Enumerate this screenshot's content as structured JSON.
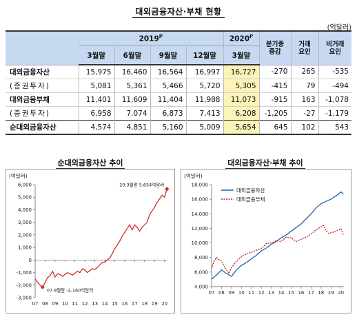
{
  "title": "대외금융자산·부채 현황",
  "unit": "(억달러)",
  "table": {
    "year_2019": "2019",
    "year_2020": "2020",
    "prelim_mark": "P",
    "col_headers": [
      "3월말",
      "6월말",
      "9월말",
      "12월말",
      "3월말"
    ],
    "change_header": [
      "분기중",
      "증감"
    ],
    "trade_header": [
      "거래",
      "요인"
    ],
    "nontrade_header": [
      "비거래",
      "요인"
    ],
    "rows": [
      {
        "label": "대외금융자산",
        "values": [
          "15,975",
          "16,460",
          "16,564",
          "16,997",
          "16,727",
          "-270",
          "265",
          "-535"
        ]
      },
      {
        "label": "(증권투자)",
        "values": [
          "5,081",
          "5,361",
          "5,466",
          "5,720",
          "5,305",
          "-415",
          "79",
          "-494"
        ]
      },
      {
        "label": "대외금융부채",
        "values": [
          "11,401",
          "11,609",
          "11,404",
          "11,988",
          "11,073",
          "-915",
          "163",
          "-1,078"
        ]
      },
      {
        "label": "(증권투자)",
        "values": [
          "6,958",
          "7,074",
          "6,873",
          "7,413",
          "6,208",
          "-1,205",
          "-27",
          "-1,179"
        ]
      },
      {
        "label": "순대외금융자산",
        "values": [
          "4,574",
          "4,851",
          "5,160",
          "5,009",
          "5,654",
          "645",
          "102",
          "543"
        ]
      }
    ]
  },
  "left_chart": {
    "title": "순대외금융자산 추이",
    "unit": "(억달러)",
    "annotation_max": "20.3월말 5,654억달러",
    "annotation_min": "07.9월말 -2,160억달러",
    "chart_data": {
      "type": "line",
      "ylim": [
        -3000,
        6000
      ],
      "yticks": [
        "6,000",
        "5,000",
        "4,000",
        "3,000",
        "2,000",
        "1,000",
        "0",
        "-1,000",
        "-2,000",
        "-3,000"
      ],
      "xticks": [
        "07",
        "08",
        "09",
        "10",
        "11",
        "12",
        "13",
        "14",
        "15",
        "16",
        "17",
        "18",
        "19",
        "20"
      ],
      "series": [
        {
          "color": "#d42a2a",
          "x": [
            2007.0,
            2007.25,
            2007.5,
            2007.75,
            2008.0,
            2008.25,
            2008.5,
            2008.75,
            2009.0,
            2009.25,
            2009.5,
            2009.75,
            2010.0,
            2010.25,
            2010.5,
            2010.75,
            2011.0,
            2011.25,
            2011.5,
            2011.75,
            2012.0,
            2012.25,
            2012.5,
            2012.75,
            2013.0,
            2013.25,
            2013.5,
            2013.75,
            2014.0,
            2014.25,
            2014.5,
            2014.75,
            2015.0,
            2015.25,
            2015.5,
            2015.75,
            2016.0,
            2016.25,
            2016.5,
            2016.75,
            2017.0,
            2017.25,
            2017.5,
            2017.75,
            2018.0,
            2018.25,
            2018.5,
            2018.75,
            2019.0,
            2019.25,
            2019.5,
            2019.75,
            2020.0,
            2020.25
          ],
          "values": [
            -1500,
            -1800,
            -2000,
            -2160,
            -1800,
            -1400,
            -1250,
            -900,
            -1350,
            -1100,
            -1150,
            -1300,
            -1150,
            -1000,
            -1100,
            -1200,
            -1050,
            -900,
            -1000,
            -700,
            -800,
            -1000,
            -850,
            -700,
            -750,
            -600,
            -400,
            -200,
            -150,
            0,
            150,
            500,
            900,
            1200,
            1500,
            1900,
            2200,
            2500,
            2800,
            2400,
            2800,
            2600,
            2300,
            2600,
            2800,
            3000,
            3600,
            3900,
            4200,
            4574,
            4851,
            5160,
            5009,
            5654
          ]
        }
      ]
    }
  },
  "right_chart": {
    "title": "대외금융자산·부채 추이",
    "unit": "(억달러)",
    "chart_data": {
      "type": "line",
      "ylim": [
        4000,
        18000
      ],
      "yticks": [
        "18,000",
        "16,000",
        "14,000",
        "12,000",
        "10,000",
        "8,000",
        "6,000",
        "4,000"
      ],
      "xticks": [
        "07",
        "08",
        "09",
        "10",
        "11",
        "12",
        "13",
        "14",
        "15",
        "16",
        "17",
        "18",
        "19",
        "20"
      ],
      "series": [
        {
          "name": "대외금융자산",
          "color": "#1f5fa8",
          "x": [
            2007.0,
            2007.5,
            2008.0,
            2008.5,
            2009.0,
            2009.5,
            2010.0,
            2010.5,
            2011.0,
            2011.5,
            2012.0,
            2012.5,
            2013.0,
            2013.5,
            2014.0,
            2014.5,
            2015.0,
            2015.5,
            2016.0,
            2016.5,
            2017.0,
            2017.5,
            2018.0,
            2018.5,
            2019.0,
            2019.5,
            2020.0,
            2020.25
          ],
          "values": [
            5000,
            5600,
            6300,
            5800,
            5400,
            6300,
            6900,
            7300,
            7800,
            8300,
            8900,
            9300,
            9800,
            10200,
            10700,
            11100,
            11600,
            12100,
            12600,
            13300,
            14000,
            14800,
            15400,
            15700,
            16000,
            16460,
            16997,
            16727
          ]
        },
        {
          "name": "대외금융부채",
          "color": "#c81d1d",
          "x": [
            2007.0,
            2007.25,
            2007.5,
            2007.75,
            2008.0,
            2008.25,
            2008.5,
            2008.75,
            2009.0,
            2009.5,
            2010.0,
            2010.5,
            2011.0,
            2011.5,
            2012.0,
            2012.5,
            2013.0,
            2013.5,
            2014.0,
            2014.5,
            2015.0,
            2015.5,
            2016.0,
            2016.5,
            2017.0,
            2017.5,
            2018.0,
            2018.25,
            2018.5,
            2018.75,
            2019.0,
            2019.5,
            2020.0,
            2020.25
          ],
          "values": [
            6500,
            7500,
            8000,
            7700,
            7500,
            6800,
            6300,
            5800,
            6600,
            7500,
            8100,
            8500,
            8700,
            9000,
            9200,
            9900,
            10000,
            10300,
            10200,
            10800,
            10700,
            10200,
            10500,
            10800,
            11200,
            11800,
            12200,
            12400,
            11700,
            11300,
            11401,
            11609,
            11988,
            11073
          ]
        }
      ]
    }
  }
}
